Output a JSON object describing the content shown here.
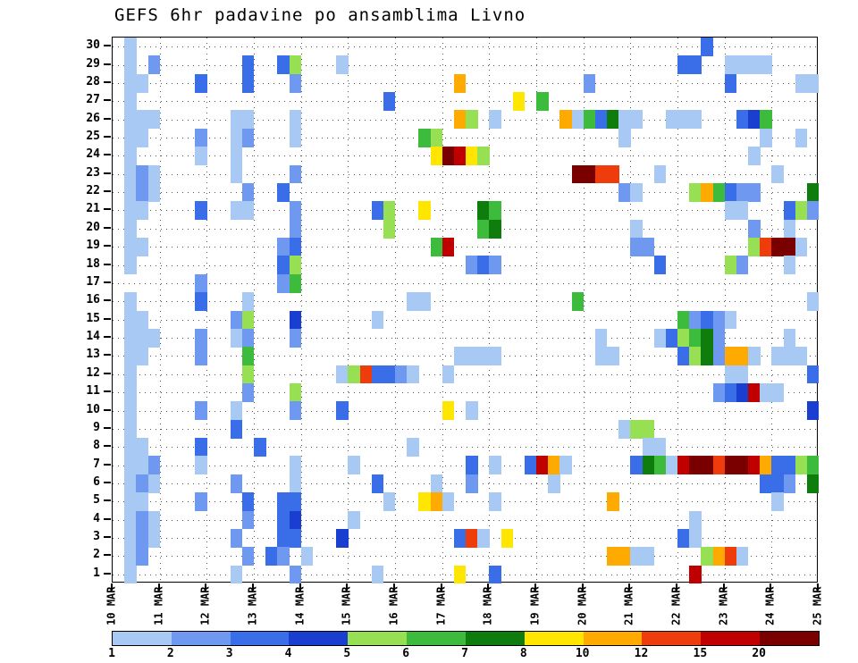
{
  "title": "GEFS 6hr padavine po ansamblima Livno",
  "chart_data": {
    "type": "heatmap",
    "title": "GEFS 6hr padavine po ansamblima Livno",
    "description": "6-hourly precipitation per GEFS ensemble member (rows 1-30) versus time (10 MAR - 25 MAR, 6hr steps)",
    "n_members": 30,
    "n_steps": 60,
    "steps_per_day": 4,
    "grid": "dotted",
    "y_labels": [
      "1",
      "2",
      "3",
      "4",
      "5",
      "6",
      "7",
      "8",
      "9",
      "10",
      "11",
      "12",
      "13",
      "14",
      "15",
      "16",
      "17",
      "18",
      "19",
      "20",
      "21",
      "22",
      "23",
      "24",
      "25",
      "26",
      "27",
      "28",
      "29",
      "30"
    ],
    "x_labels": [
      "10 MAR",
      "11 MAR",
      "12 MAR",
      "13 MAR",
      "14 MAR",
      "15 MAR",
      "16 MAR",
      "17 MAR",
      "18 MAR",
      "19 MAR",
      "20 MAR",
      "21 MAR",
      "22 MAR",
      "23 MAR",
      "24 MAR",
      "25 MAR"
    ],
    "colorbar_tick_labels": [
      "1",
      "2",
      "3",
      "4",
      "5",
      "6",
      "7",
      "8",
      "10",
      "12",
      "15",
      "20"
    ],
    "thresholds": [
      1,
      2,
      3,
      4,
      5,
      6,
      7,
      8,
      10,
      12,
      15,
      20
    ],
    "levels": [
      {
        "range": "1-2",
        "color": "#a9c9f5"
      },
      {
        "range": "2-3",
        "color": "#6f99f0"
      },
      {
        "range": "3-4",
        "color": "#3a6ee8"
      },
      {
        "range": "4-5",
        "color": "#1a3fd0"
      },
      {
        "range": "5-6",
        "color": "#97e054"
      },
      {
        "range": "6-7",
        "color": "#3dbb3d"
      },
      {
        "range": "7-8",
        "color": "#0e7d0e"
      },
      {
        "range": "8-10",
        "color": "#ffe600"
      },
      {
        "range": "10-12",
        "color": "#ffaa00"
      },
      {
        "range": "12-15",
        "color": "#ee3c0c"
      },
      {
        "range": "15-20",
        "color": "#c00000"
      },
      {
        "range": ">20",
        "color": "#7a0000"
      }
    ],
    "cells": [
      [
        30,
        1,
        0
      ],
      [
        30,
        50,
        2
      ],
      [
        29,
        1,
        0
      ],
      [
        29,
        3,
        1
      ],
      [
        29,
        11,
        2
      ],
      [
        29,
        14,
        2
      ],
      [
        29,
        15,
        4
      ],
      [
        29,
        19,
        0
      ],
      [
        29,
        48,
        2
      ],
      [
        29,
        49,
        2
      ],
      [
        29,
        52,
        0
      ],
      [
        29,
        53,
        0
      ],
      [
        29,
        54,
        0
      ],
      [
        29,
        55,
        0
      ],
      [
        28,
        1,
        0
      ],
      [
        28,
        2,
        0
      ],
      [
        28,
        7,
        2
      ],
      [
        28,
        11,
        2
      ],
      [
        28,
        15,
        1
      ],
      [
        28,
        29,
        8
      ],
      [
        28,
        40,
        1
      ],
      [
        28,
        52,
        2
      ],
      [
        28,
        58,
        0
      ],
      [
        28,
        59,
        0
      ],
      [
        27,
        1,
        0
      ],
      [
        27,
        23,
        2
      ],
      [
        27,
        34,
        7
      ],
      [
        27,
        36,
        5
      ],
      [
        26,
        1,
        0
      ],
      [
        26,
        2,
        0
      ],
      [
        26,
        3,
        0
      ],
      [
        26,
        10,
        0
      ],
      [
        26,
        11,
        0
      ],
      [
        26,
        15,
        0
      ],
      [
        26,
        29,
        8
      ],
      [
        26,
        30,
        4
      ],
      [
        26,
        32,
        0
      ],
      [
        26,
        38,
        8
      ],
      [
        26,
        39,
        0
      ],
      [
        26,
        40,
        5
      ],
      [
        26,
        41,
        2
      ],
      [
        26,
        42,
        6
      ],
      [
        26,
        43,
        0
      ],
      [
        26,
        44,
        0
      ],
      [
        26,
        47,
        0
      ],
      [
        26,
        48,
        0
      ],
      [
        26,
        49,
        0
      ],
      [
        26,
        53,
        2
      ],
      [
        26,
        54,
        3
      ],
      [
        26,
        55,
        5
      ],
      [
        25,
        1,
        0
      ],
      [
        25,
        2,
        0
      ],
      [
        25,
        7,
        1
      ],
      [
        25,
        10,
        0
      ],
      [
        25,
        11,
        1
      ],
      [
        25,
        15,
        0
      ],
      [
        25,
        26,
        5
      ],
      [
        25,
        27,
        4
      ],
      [
        25,
        43,
        0
      ],
      [
        25,
        55,
        0
      ],
      [
        25,
        58,
        0
      ],
      [
        24,
        1,
        0
      ],
      [
        24,
        7,
        0
      ],
      [
        24,
        10,
        0
      ],
      [
        24,
        27,
        7
      ],
      [
        24,
        28,
        11
      ],
      [
        24,
        29,
        10
      ],
      [
        24,
        30,
        7
      ],
      [
        24,
        31,
        4
      ],
      [
        24,
        54,
        0
      ],
      [
        23,
        1,
        0
      ],
      [
        23,
        2,
        1
      ],
      [
        23,
        3,
        0
      ],
      [
        23,
        10,
        0
      ],
      [
        23,
        15,
        1
      ],
      [
        23,
        39,
        11
      ],
      [
        23,
        40,
        11
      ],
      [
        23,
        41,
        9
      ],
      [
        23,
        42,
        9
      ],
      [
        23,
        46,
        0
      ],
      [
        23,
        56,
        0
      ],
      [
        22,
        1,
        0
      ],
      [
        22,
        2,
        1
      ],
      [
        22,
        3,
        0
      ],
      [
        22,
        11,
        1
      ],
      [
        22,
        14,
        2
      ],
      [
        22,
        43,
        1
      ],
      [
        22,
        44,
        0
      ],
      [
        22,
        49,
        4
      ],
      [
        22,
        50,
        8
      ],
      [
        22,
        51,
        5
      ],
      [
        22,
        52,
        2
      ],
      [
        22,
        53,
        1
      ],
      [
        22,
        54,
        1
      ],
      [
        22,
        59,
        6
      ],
      [
        21,
        1,
        0
      ],
      [
        21,
        2,
        0
      ],
      [
        21,
        7,
        2
      ],
      [
        21,
        10,
        0
      ],
      [
        21,
        11,
        0
      ],
      [
        21,
        15,
        1
      ],
      [
        21,
        22,
        2
      ],
      [
        21,
        23,
        4
      ],
      [
        21,
        26,
        7
      ],
      [
        21,
        31,
        6
      ],
      [
        21,
        32,
        5
      ],
      [
        21,
        52,
        0
      ],
      [
        21,
        53,
        0
      ],
      [
        21,
        57,
        2
      ],
      [
        21,
        58,
        4
      ],
      [
        21,
        59,
        1
      ],
      [
        20,
        1,
        0
      ],
      [
        20,
        15,
        1
      ],
      [
        20,
        23,
        4
      ],
      [
        20,
        31,
        5
      ],
      [
        20,
        32,
        6
      ],
      [
        20,
        44,
        0
      ],
      [
        20,
        54,
        1
      ],
      [
        20,
        57,
        0
      ],
      [
        19,
        1,
        0
      ],
      [
        19,
        2,
        0
      ],
      [
        19,
        14,
        1
      ],
      [
        19,
        15,
        2
      ],
      [
        19,
        27,
        5
      ],
      [
        19,
        28,
        10
      ],
      [
        19,
        44,
        1
      ],
      [
        19,
        45,
        1
      ],
      [
        19,
        54,
        4
      ],
      [
        19,
        55,
        9
      ],
      [
        19,
        56,
        11
      ],
      [
        19,
        57,
        11
      ],
      [
        19,
        58,
        0
      ],
      [
        18,
        1,
        0
      ],
      [
        18,
        14,
        2
      ],
      [
        18,
        15,
        4
      ],
      [
        18,
        30,
        1
      ],
      [
        18,
        31,
        2
      ],
      [
        18,
        32,
        1
      ],
      [
        18,
        46,
        2
      ],
      [
        18,
        52,
        4
      ],
      [
        18,
        53,
        1
      ],
      [
        18,
        57,
        0
      ],
      [
        17,
        7,
        1
      ],
      [
        17,
        14,
        1
      ],
      [
        17,
        15,
        5
      ],
      [
        16,
        1,
        0
      ],
      [
        16,
        7,
        2
      ],
      [
        16,
        11,
        0
      ],
      [
        16,
        25,
        0
      ],
      [
        16,
        26,
        0
      ],
      [
        16,
        39,
        5
      ],
      [
        16,
        59,
        0
      ],
      [
        15,
        1,
        0
      ],
      [
        15,
        2,
        0
      ],
      [
        15,
        10,
        1
      ],
      [
        15,
        11,
        4
      ],
      [
        15,
        15,
        3
      ],
      [
        15,
        22,
        0
      ],
      [
        15,
        48,
        5
      ],
      [
        15,
        49,
        1
      ],
      [
        15,
        50,
        2
      ],
      [
        15,
        51,
        1
      ],
      [
        15,
        52,
        0
      ],
      [
        14,
        1,
        0
      ],
      [
        14,
        2,
        0
      ],
      [
        14,
        3,
        0
      ],
      [
        14,
        7,
        1
      ],
      [
        14,
        10,
        0
      ],
      [
        14,
        11,
        1
      ],
      [
        14,
        15,
        1
      ],
      [
        14,
        41,
        0
      ],
      [
        14,
        46,
        0
      ],
      [
        14,
        47,
        2
      ],
      [
        14,
        48,
        4
      ],
      [
        14,
        49,
        5
      ],
      [
        14,
        50,
        6
      ],
      [
        14,
        51,
        1
      ],
      [
        14,
        57,
        0
      ],
      [
        13,
        1,
        0
      ],
      [
        13,
        2,
        0
      ],
      [
        13,
        7,
        1
      ],
      [
        13,
        11,
        5
      ],
      [
        13,
        29,
        0
      ],
      [
        13,
        30,
        0
      ],
      [
        13,
        31,
        0
      ],
      [
        13,
        32,
        0
      ],
      [
        13,
        41,
        0
      ],
      [
        13,
        42,
        0
      ],
      [
        13,
        48,
        2
      ],
      [
        13,
        49,
        4
      ],
      [
        13,
        50,
        6
      ],
      [
        13,
        51,
        1
      ],
      [
        13,
        52,
        8
      ],
      [
        13,
        53,
        8
      ],
      [
        13,
        54,
        0
      ],
      [
        13,
        56,
        0
      ],
      [
        13,
        57,
        0
      ],
      [
        13,
        58,
        0
      ],
      [
        12,
        1,
        0
      ],
      [
        12,
        11,
        4
      ],
      [
        12,
        19,
        0
      ],
      [
        12,
        20,
        4
      ],
      [
        12,
        21,
        9
      ],
      [
        12,
        22,
        2
      ],
      [
        12,
        23,
        2
      ],
      [
        12,
        24,
        1
      ],
      [
        12,
        25,
        0
      ],
      [
        12,
        28,
        0
      ],
      [
        12,
        52,
        0
      ],
      [
        12,
        53,
        0
      ],
      [
        12,
        59,
        2
      ],
      [
        11,
        1,
        0
      ],
      [
        11,
        11,
        1
      ],
      [
        11,
        15,
        4
      ],
      [
        11,
        51,
        1
      ],
      [
        11,
        52,
        2
      ],
      [
        11,
        53,
        3
      ],
      [
        11,
        54,
        10
      ],
      [
        11,
        55,
        0
      ],
      [
        11,
        56,
        0
      ],
      [
        10,
        1,
        0
      ],
      [
        10,
        7,
        1
      ],
      [
        10,
        10,
        0
      ],
      [
        10,
        15,
        1
      ],
      [
        10,
        19,
        2
      ],
      [
        10,
        28,
        7
      ],
      [
        10,
        30,
        0
      ],
      [
        10,
        59,
        3
      ],
      [
        9,
        1,
        0
      ],
      [
        9,
        10,
        2
      ],
      [
        9,
        43,
        0
      ],
      [
        9,
        44,
        4
      ],
      [
        9,
        45,
        4
      ],
      [
        8,
        1,
        0
      ],
      [
        8,
        2,
        0
      ],
      [
        8,
        7,
        2
      ],
      [
        8,
        12,
        2
      ],
      [
        8,
        25,
        0
      ],
      [
        8,
        45,
        0
      ],
      [
        8,
        46,
        0
      ],
      [
        7,
        1,
        0
      ],
      [
        7,
        2,
        0
      ],
      [
        7,
        3,
        1
      ],
      [
        7,
        7,
        0
      ],
      [
        7,
        15,
        0
      ],
      [
        7,
        20,
        0
      ],
      [
        7,
        30,
        2
      ],
      [
        7,
        32,
        0
      ],
      [
        7,
        35,
        2
      ],
      [
        7,
        36,
        10
      ],
      [
        7,
        37,
        8
      ],
      [
        7,
        38,
        0
      ],
      [
        7,
        44,
        2
      ],
      [
        7,
        45,
        6
      ],
      [
        7,
        46,
        5
      ],
      [
        7,
        47,
        0
      ],
      [
        7,
        48,
        10
      ],
      [
        7,
        49,
        11
      ],
      [
        7,
        50,
        11
      ],
      [
        7,
        51,
        9
      ],
      [
        7,
        52,
        11
      ],
      [
        7,
        53,
        11
      ],
      [
        7,
        54,
        10
      ],
      [
        7,
        55,
        8
      ],
      [
        7,
        56,
        2
      ],
      [
        7,
        57,
        2
      ],
      [
        7,
        58,
        4
      ],
      [
        7,
        59,
        5
      ],
      [
        6,
        1,
        0
      ],
      [
        6,
        2,
        1
      ],
      [
        6,
        3,
        0
      ],
      [
        6,
        10,
        1
      ],
      [
        6,
        15,
        0
      ],
      [
        6,
        22,
        2
      ],
      [
        6,
        27,
        0
      ],
      [
        6,
        30,
        1
      ],
      [
        6,
        37,
        0
      ],
      [
        6,
        55,
        2
      ],
      [
        6,
        56,
        2
      ],
      [
        6,
        57,
        1
      ],
      [
        6,
        59,
        6
      ],
      [
        5,
        1,
        0
      ],
      [
        5,
        2,
        0
      ],
      [
        5,
        7,
        1
      ],
      [
        5,
        11,
        2
      ],
      [
        5,
        14,
        2
      ],
      [
        5,
        15,
        2
      ],
      [
        5,
        23,
        0
      ],
      [
        5,
        26,
        7
      ],
      [
        5,
        27,
        8
      ],
      [
        5,
        28,
        0
      ],
      [
        5,
        32,
        0
      ],
      [
        5,
        42,
        8
      ],
      [
        5,
        56,
        0
      ],
      [
        4,
        1,
        0
      ],
      [
        4,
        2,
        1
      ],
      [
        4,
        3,
        0
      ],
      [
        4,
        11,
        1
      ],
      [
        4,
        14,
        2
      ],
      [
        4,
        15,
        3
      ],
      [
        4,
        20,
        0
      ],
      [
        4,
        49,
        0
      ],
      [
        3,
        1,
        0
      ],
      [
        3,
        2,
        1
      ],
      [
        3,
        3,
        0
      ],
      [
        3,
        10,
        1
      ],
      [
        3,
        14,
        2
      ],
      [
        3,
        15,
        2
      ],
      [
        3,
        19,
        3
      ],
      [
        3,
        29,
        2
      ],
      [
        3,
        30,
        9
      ],
      [
        3,
        31,
        0
      ],
      [
        3,
        33,
        7
      ],
      [
        3,
        48,
        2
      ],
      [
        3,
        49,
        0
      ],
      [
        2,
        1,
        0
      ],
      [
        2,
        2,
        1
      ],
      [
        2,
        11,
        1
      ],
      [
        2,
        13,
        2
      ],
      [
        2,
        14,
        1
      ],
      [
        2,
        16,
        0
      ],
      [
        2,
        42,
        8
      ],
      [
        2,
        43,
        8
      ],
      [
        2,
        44,
        0
      ],
      [
        2,
        45,
        0
      ],
      [
        2,
        50,
        4
      ],
      [
        2,
        51,
        8
      ],
      [
        2,
        52,
        9
      ],
      [
        2,
        53,
        0
      ],
      [
        1,
        1,
        0
      ],
      [
        1,
        10,
        0
      ],
      [
        1,
        15,
        1
      ],
      [
        1,
        22,
        0
      ],
      [
        1,
        29,
        7
      ],
      [
        1,
        32,
        2
      ],
      [
        1,
        49,
        10
      ]
    ]
  }
}
